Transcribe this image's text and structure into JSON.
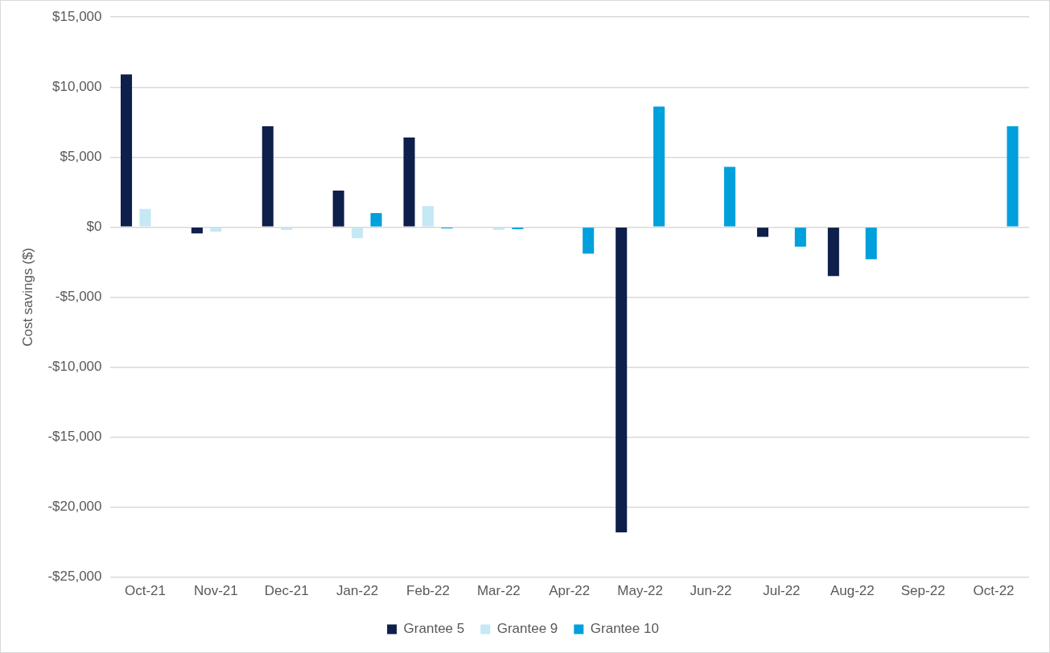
{
  "chart_data": {
    "type": "bar",
    "ylabel": "Cost savings ($)",
    "categories": [
      "Oct-21",
      "Nov-21",
      "Dec-21",
      "Jan-22",
      "Feb-22",
      "Mar-22",
      "Apr-22",
      "May-22",
      "Jun-22",
      "Jul-22",
      "Aug-22",
      "Sep-22",
      "Oct-22"
    ],
    "series": [
      {
        "name": "Grantee 5",
        "color": "#0f1f4b",
        "values": [
          10900,
          -450,
          7200,
          2600,
          6400,
          null,
          null,
          -21800,
          null,
          -700,
          -3500,
          null,
          null
        ]
      },
      {
        "name": "Grantee 9",
        "color": "#c5e8f5",
        "values": [
          1300,
          -330,
          -210,
          -800,
          1500,
          -200,
          null,
          null,
          null,
          null,
          null,
          null,
          null
        ]
      },
      {
        "name": "Grantee 10",
        "color": "#00a0dc",
        "values": [
          null,
          null,
          null,
          1000,
          -100,
          -150,
          -1900,
          8600,
          4300,
          -1400,
          -2300,
          null,
          7200
        ]
      }
    ],
    "ylim": [
      -25000,
      15000
    ],
    "yticks": [
      {
        "value": -25000,
        "label": "-$25,000"
      },
      {
        "value": -20000,
        "label": "-$20,000"
      },
      {
        "value": -15000,
        "label": "-$15,000"
      },
      {
        "value": -10000,
        "label": "-$10,000"
      },
      {
        "value": -5000,
        "label": "-$5,000"
      },
      {
        "value": 0,
        "label": "$0"
      },
      {
        "value": 5000,
        "label": "$5,000"
      },
      {
        "value": 10000,
        "label": "$10,000"
      },
      {
        "value": 15000,
        "label": "$15,000"
      }
    ],
    "grid": "y",
    "legend": "bottom"
  }
}
